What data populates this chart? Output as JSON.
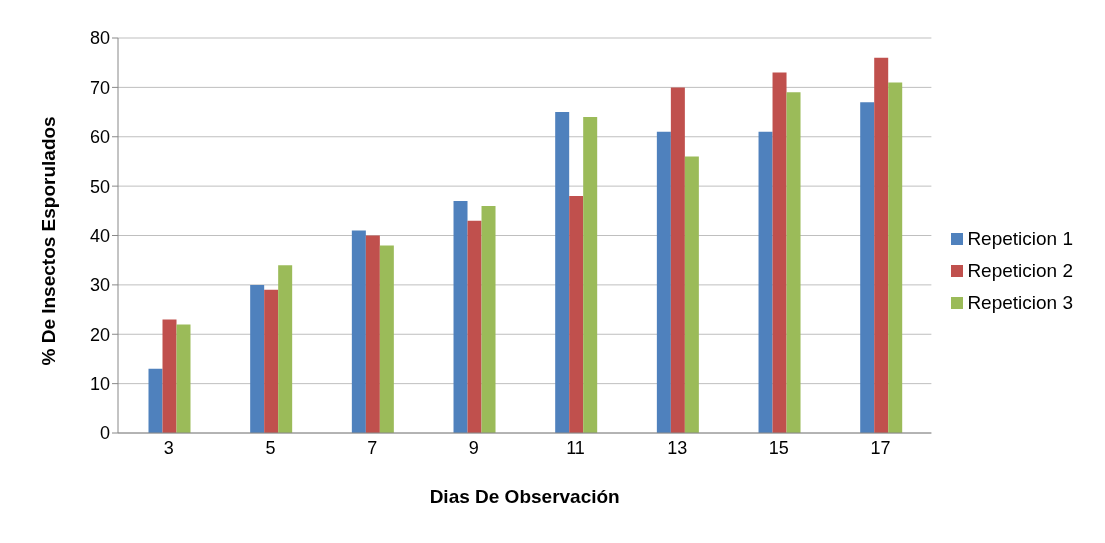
{
  "chart_data": {
    "type": "bar",
    "xlabel": "Dias De Observación",
    "ylabel": "% De Insectos Esporulados",
    "categories": [
      "3",
      "5",
      "7",
      "9",
      "11",
      "13",
      "15",
      "17"
    ],
    "series": [
      {
        "name": "Repeticion 1",
        "color": "#4f81bd",
        "values": [
          13,
          30,
          41,
          47,
          65,
          61,
          61,
          67
        ]
      },
      {
        "name": "Repeticion 2",
        "color": "#c0504d",
        "values": [
          23,
          29,
          40,
          43,
          48,
          70,
          73,
          76
        ]
      },
      {
        "name": "Repeticion 3",
        "color": "#9bbb59",
        "values": [
          22,
          34,
          38,
          46,
          64,
          56,
          69,
          71
        ]
      }
    ],
    "ylim": [
      0,
      80
    ],
    "yticks": [
      0,
      10,
      20,
      30,
      40,
      50,
      60,
      70,
      80
    ],
    "grid": "y",
    "legend": "right"
  }
}
